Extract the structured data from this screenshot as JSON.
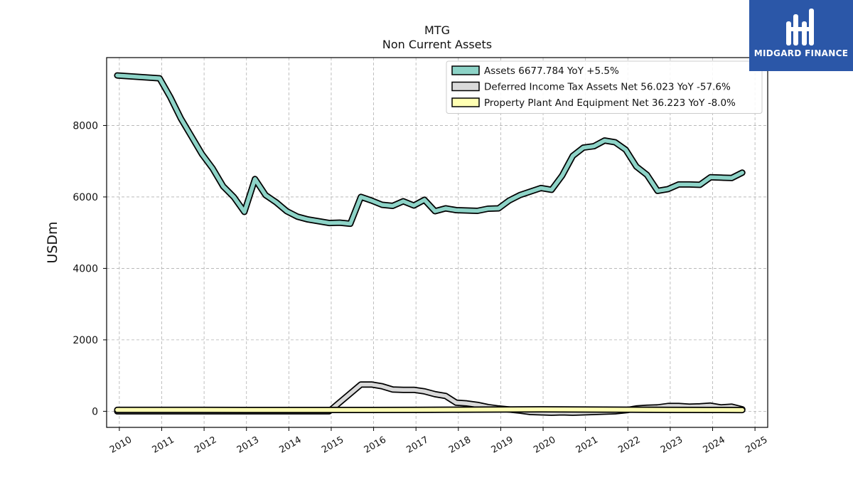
{
  "logo": {
    "text": "MIDGARD FINANCE",
    "bg_color": "#2b57a8",
    "icon": "midgard-logo-icon"
  },
  "chart_data": {
    "type": "area",
    "title": "MTG",
    "subtitle": "Non Current  Assets",
    "xlabel": "",
    "ylabel": "USDm",
    "xlim": [
      2009.7,
      2025.3
    ],
    "ylim": [
      -450,
      9900
    ],
    "yticks": [
      0,
      2000,
      4000,
      6000,
      8000
    ],
    "xticks": [
      2010,
      2011,
      2012,
      2013,
      2014,
      2015,
      2016,
      2017,
      2018,
      2019,
      2020,
      2021,
      2022,
      2023,
      2024,
      2025
    ],
    "grid": true,
    "legend_position": "top-right",
    "series": [
      {
        "name": "Assets  6677.784 YoY +5.5%",
        "color": "#8dd3c7",
        "x": [
          2009.95,
          2010.95,
          2011.2,
          2011.45,
          2011.7,
          2011.95,
          2012.2,
          2012.45,
          2012.7,
          2012.95,
          2013.2,
          2013.45,
          2013.7,
          2013.95,
          2014.2,
          2014.45,
          2014.7,
          2014.95,
          2015.2,
          2015.45,
          2015.7,
          2015.95,
          2016.2,
          2016.45,
          2016.7,
          2016.95,
          2017.2,
          2017.45,
          2017.7,
          2017.95,
          2018.2,
          2018.45,
          2018.7,
          2018.95,
          2019.2,
          2019.45,
          2019.7,
          2019.95,
          2020.2,
          2020.45,
          2020.7,
          2020.95,
          2021.2,
          2021.45,
          2021.7,
          2021.95,
          2022.2,
          2022.45,
          2022.7,
          2022.95,
          2023.2,
          2023.45,
          2023.7,
          2023.95,
          2024.2,
          2024.45,
          2024.7
        ],
        "values": [
          9400,
          9320,
          8800,
          8200,
          7700,
          7200,
          6800,
          6300,
          6000,
          5580,
          6500,
          6050,
          5850,
          5600,
          5450,
          5370,
          5320,
          5270,
          5280,
          5250,
          6000,
          5900,
          5780,
          5750,
          5880,
          5760,
          5920,
          5600,
          5680,
          5630,
          5620,
          5610,
          5670,
          5680,
          5900,
          6050,
          6150,
          6250,
          6200,
          6600,
          7150,
          7380,
          7420,
          7580,
          7530,
          7320,
          6850,
          6620,
          6170,
          6220,
          6350,
          6350,
          6340,
          6550,
          6540,
          6530,
          6680
        ]
      },
      {
        "name": "Deferred Income Tax Assets Net  56.023 YoY -57.6%",
        "color": "#d9d9d9",
        "x": [
          2009.95,
          2014.95,
          2015.7,
          2015.95,
          2016.2,
          2016.45,
          2016.7,
          2016.95,
          2017.2,
          2017.45,
          2017.7,
          2017.95,
          2018.2,
          2018.45,
          2018.7,
          2018.95,
          2019.2,
          2019.45,
          2019.7,
          2019.95,
          2020.2,
          2020.45,
          2020.7,
          2020.95,
          2021.2,
          2021.45,
          2021.7,
          2021.95,
          2022.2,
          2022.45,
          2022.7,
          2022.95,
          2023.2,
          2023.45,
          2023.7,
          2023.95,
          2024.2,
          2024.45,
          2024.7
        ],
        "values": [
          0,
          0,
          750,
          750,
          700,
          610,
          600,
          600,
          560,
          480,
          430,
          240,
          220,
          180,
          120,
          80,
          50,
          20,
          -20,
          -30,
          -40,
          -30,
          -40,
          -30,
          -20,
          -10,
          0,
          30,
          80,
          100,
          110,
          150,
          150,
          130,
          140,
          160,
          110,
          130,
          56
        ]
      },
      {
        "name": "Property Plant And Equipment Net  36.223 YoY -8.0%",
        "color": "#ffffb3",
        "x": [
          2009.95,
          2010.95,
          2011.95,
          2012.95,
          2013.95,
          2014.95,
          2015.95,
          2016.95,
          2017.95,
          2018.95,
          2019.95,
          2020.95,
          2021.95,
          2022.95,
          2023.95,
          2024.7
        ],
        "values": [
          40,
          40,
          40,
          38,
          38,
          38,
          38,
          40,
          45,
          50,
          55,
          50,
          45,
          40,
          38,
          36
        ]
      }
    ]
  }
}
